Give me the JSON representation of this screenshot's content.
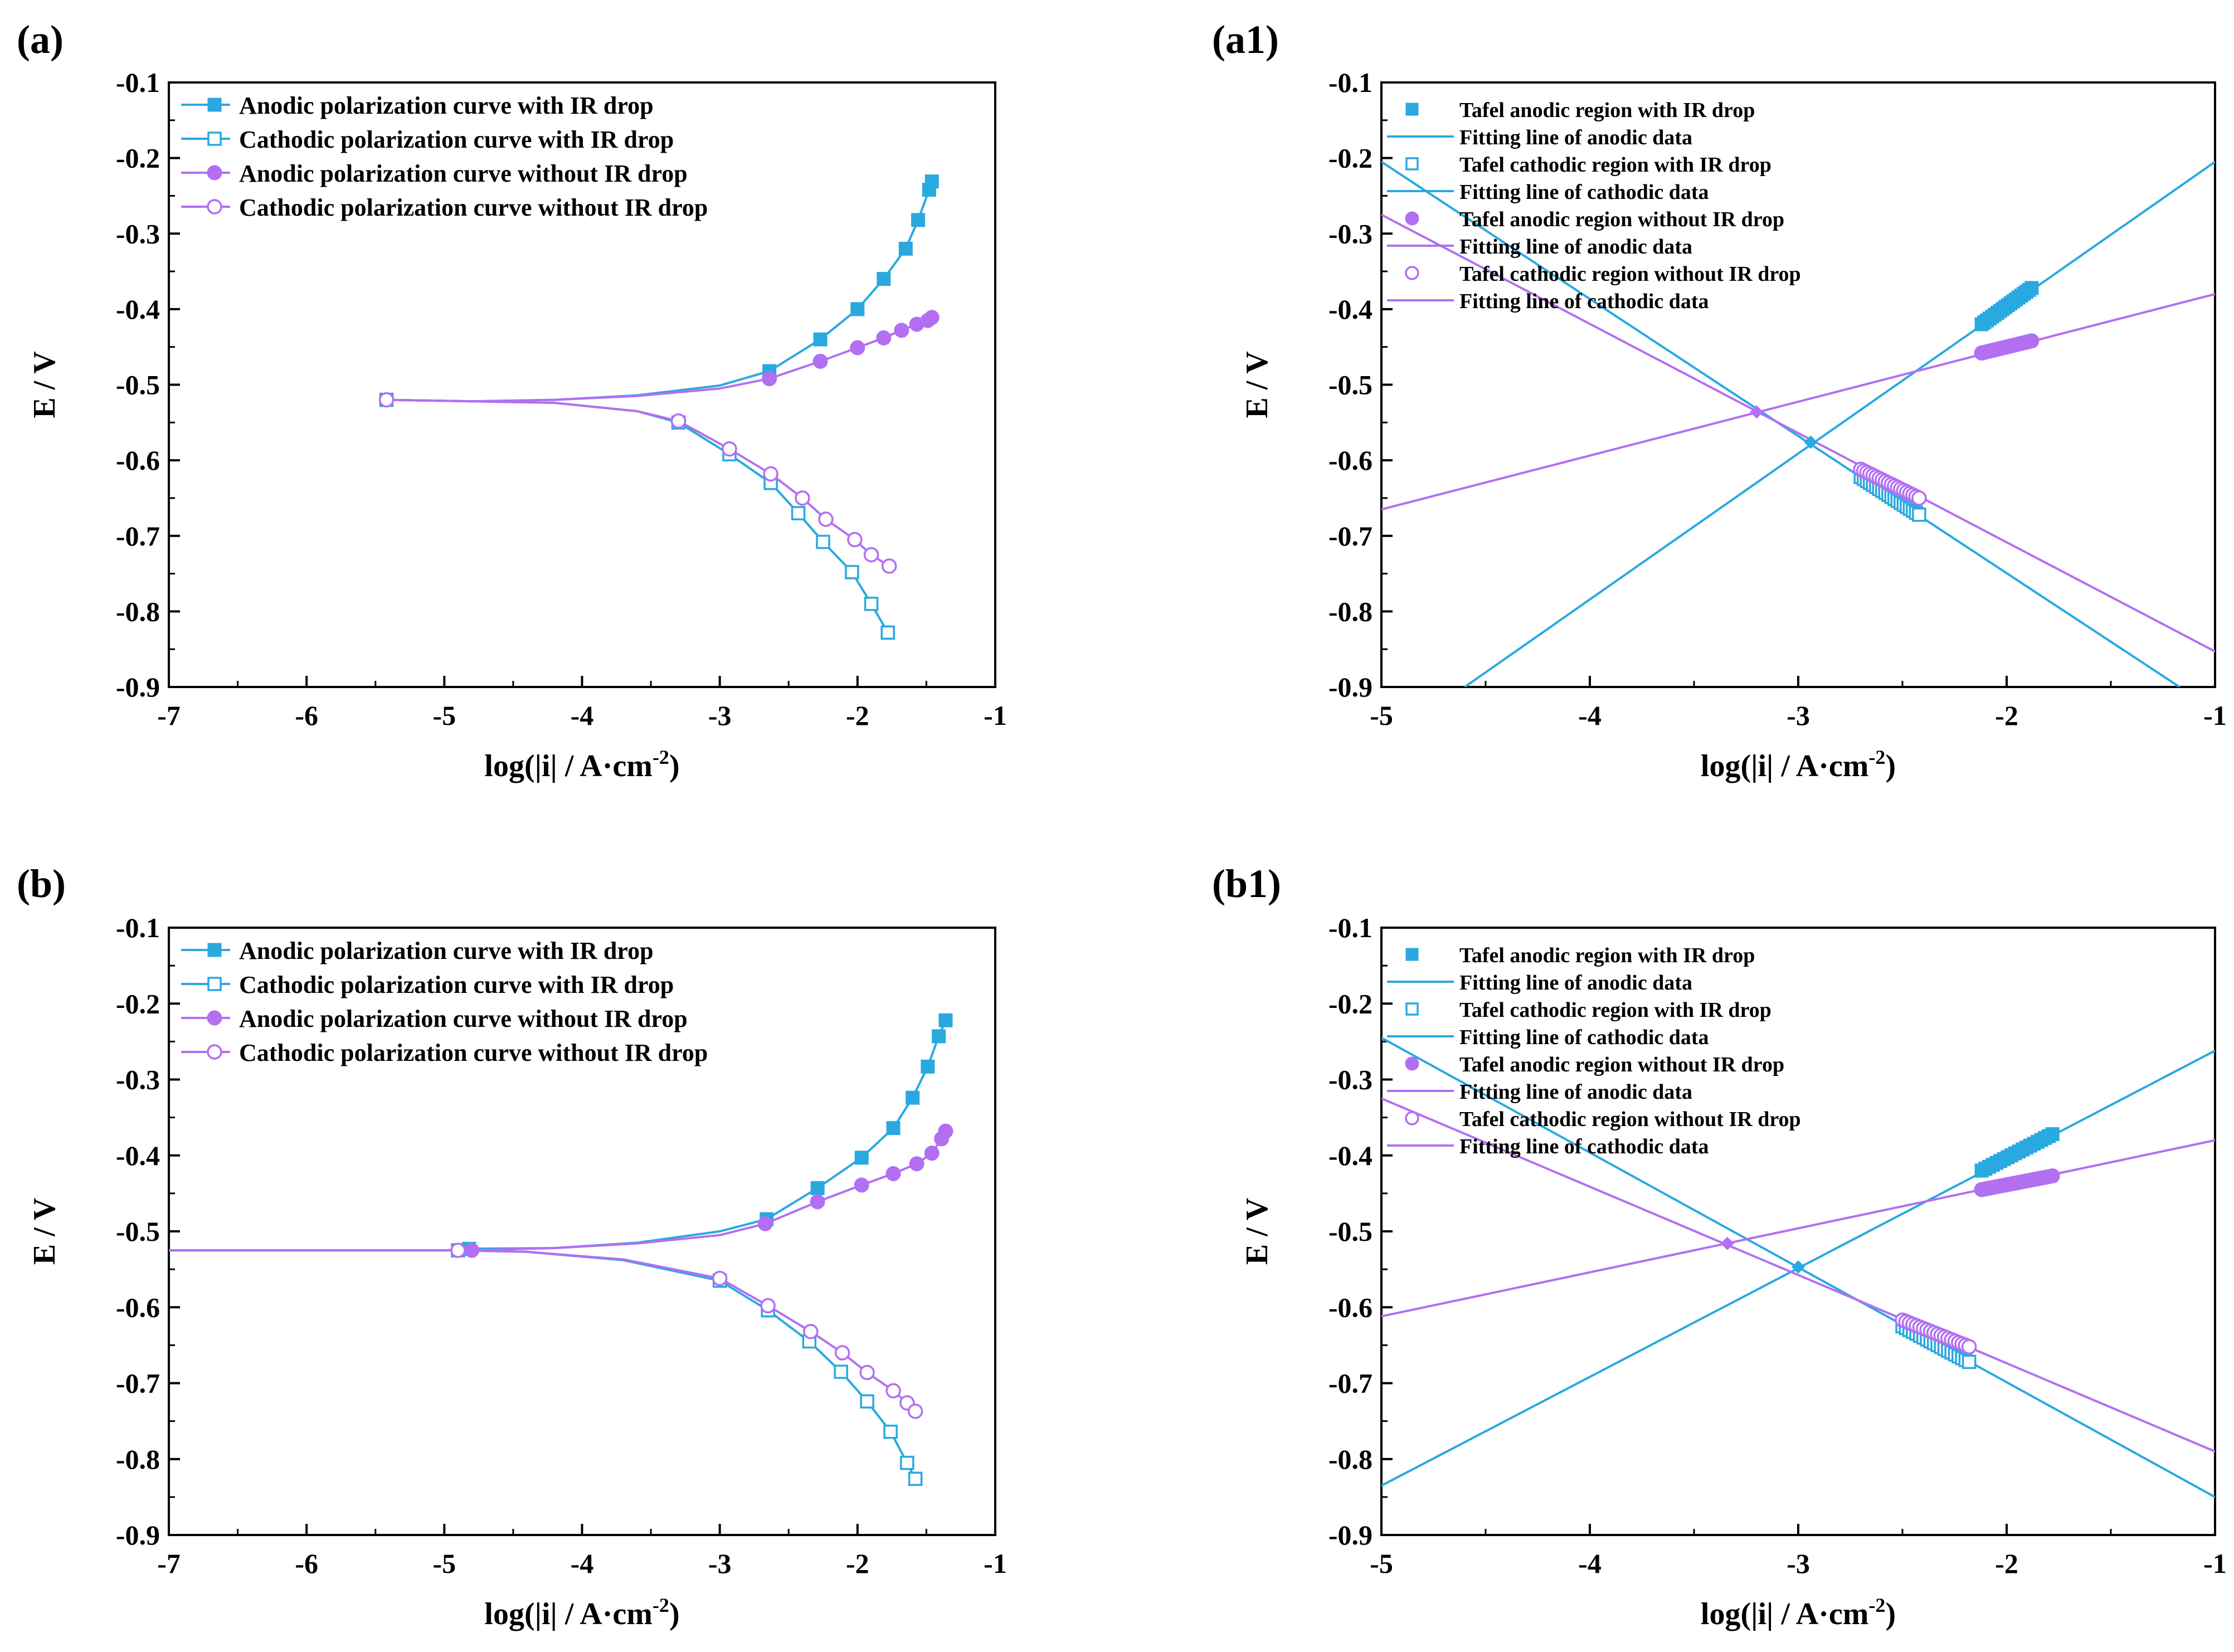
{
  "colors": {
    "blue": "#29a9e0",
    "purple": "#b36ff2",
    "axis": "#000000"
  },
  "panels": {
    "a": {
      "label": "(a)"
    },
    "a1": {
      "label": "(a1)"
    },
    "b": {
      "label": "(b)"
    },
    "b1": {
      "label": "(b1)"
    }
  },
  "chart_data": [
    {
      "id": "a",
      "type": "line",
      "xlabel_base": "log(|i| / A·cm",
      "xlabel_sup": "-2",
      "xlabel_close": ")",
      "ylabel": "E / V",
      "xlim": [
        -7,
        -1
      ],
      "ylim": [
        -0.9,
        -0.1
      ],
      "xticks": [
        -7,
        -6,
        -5,
        -4,
        -3,
        -2,
        -1
      ],
      "xticklabels": [
        "-7",
        "-6",
        "-5",
        "-4",
        "-3",
        "-2",
        "-1"
      ],
      "yticks": [
        -0.1,
        -0.2,
        -0.3,
        -0.4,
        -0.5,
        -0.6,
        -0.7,
        -0.8,
        -0.9
      ],
      "yticklabels": [
        "-0.1",
        "-0.2",
        "-0.3",
        "-0.4",
        "-0.5",
        "-0.6",
        "-0.7",
        "-0.8",
        "-0.9"
      ],
      "legend_position": "top-left",
      "series": [
        {
          "name": "Anodic polarization curve with IR drop",
          "color": "blue",
          "marker": "square-filled",
          "x": [
            -5.42,
            -4.8,
            -4.2,
            -3.6,
            -3.0,
            -2.64,
            -2.27,
            -2.0,
            -1.81,
            -1.65,
            -1.56,
            -1.48,
            -1.46
          ],
          "y": [
            -0.52,
            -0.522,
            -0.52,
            -0.514,
            -0.501,
            -0.482,
            -0.44,
            -0.4,
            -0.36,
            -0.32,
            -0.282,
            -0.242,
            -0.231
          ],
          "marker_x": [
            -2.64,
            -2.27,
            -2.0,
            -1.81,
            -1.65,
            -1.56,
            -1.48,
            -1.46
          ],
          "marker_y": [
            -0.482,
            -0.44,
            -0.4,
            -0.36,
            -0.32,
            -0.282,
            -0.242,
            -0.231
          ]
        },
        {
          "name": "Cathodic polarization curve with IR drop",
          "color": "blue",
          "marker": "square-open",
          "x": [
            -5.42,
            -4.8,
            -4.2,
            -3.6,
            -3.3,
            -2.93,
            -2.63,
            -2.43,
            -2.25,
            -2.04,
            -1.9,
            -1.78
          ],
          "y": [
            -0.52,
            -0.522,
            -0.524,
            -0.535,
            -0.55,
            -0.592,
            -0.63,
            -0.67,
            -0.708,
            -0.748,
            -0.79,
            -0.828
          ],
          "marker_x": [
            -5.42,
            -3.3,
            -2.93,
            -2.63,
            -2.43,
            -2.25,
            -2.04,
            -1.9,
            -1.78
          ],
          "marker_y": [
            -0.52,
            -0.55,
            -0.592,
            -0.63,
            -0.67,
            -0.708,
            -0.748,
            -0.79,
            -0.828
          ]
        },
        {
          "name": "Anodic polarization curve without IR drop",
          "color": "purple",
          "marker": "circle-filled",
          "x": [
            -5.42,
            -4.8,
            -4.2,
            -3.6,
            -3.0,
            -2.64,
            -2.27,
            -2.0,
            -1.81,
            -1.68,
            -1.57,
            -1.49,
            -1.46
          ],
          "y": [
            -0.52,
            -0.522,
            -0.52,
            -0.515,
            -0.505,
            -0.492,
            -0.469,
            -0.451,
            -0.438,
            -0.428,
            -0.42,
            -0.415,
            -0.411
          ],
          "marker_x": [
            -2.64,
            -2.27,
            -2.0,
            -1.81,
            -1.68,
            -1.57,
            -1.49,
            -1.46
          ],
          "marker_y": [
            -0.492,
            -0.469,
            -0.451,
            -0.438,
            -0.428,
            -0.42,
            -0.415,
            -0.411
          ]
        },
        {
          "name": "Cathodic polarization curve without IR drop",
          "color": "purple",
          "marker": "circle-open",
          "x": [
            -5.42,
            -4.8,
            -4.2,
            -3.6,
            -3.3,
            -2.93,
            -2.63,
            -2.4,
            -2.23,
            -2.02,
            -1.9,
            -1.77
          ],
          "y": [
            -0.52,
            -0.522,
            -0.524,
            -0.535,
            -0.548,
            -0.585,
            -0.618,
            -0.65,
            -0.678,
            -0.705,
            -0.725,
            -0.74
          ],
          "marker_x": [
            -5.42,
            -3.3,
            -2.93,
            -2.63,
            -2.4,
            -2.23,
            -2.02,
            -1.9,
            -1.77
          ],
          "marker_y": [
            -0.52,
            -0.548,
            -0.585,
            -0.618,
            -0.65,
            -0.678,
            -0.705,
            -0.725,
            -0.74
          ]
        }
      ]
    },
    {
      "id": "a1",
      "type": "line",
      "xlabel_base": "log(|i| / A·cm",
      "xlabel_sup": "-2",
      "xlabel_close": ")",
      "ylabel": "E / V",
      "xlim": [
        -5,
        -1
      ],
      "ylim": [
        -0.9,
        -0.1
      ],
      "xticks": [
        -5,
        -4,
        -3,
        -2,
        -1
      ],
      "xticklabels": [
        "-5",
        "-4",
        "-3",
        "-2",
        "-1"
      ],
      "yticks": [
        -0.1,
        -0.2,
        -0.3,
        -0.4,
        -0.5,
        -0.6,
        -0.7,
        -0.8,
        -0.9
      ],
      "yticklabels": [
        "-0.1",
        "-0.2",
        "-0.3",
        "-0.4",
        "-0.5",
        "-0.6",
        "-0.7",
        "-0.8",
        "-0.9"
      ],
      "legend_position": "top-left",
      "legend": [
        {
          "label": "Tafel anodic region with IR drop",
          "color": "blue",
          "kind": "square-filled"
        },
        {
          "label": "Fitting line of anodic data",
          "color": "blue",
          "kind": "line"
        },
        {
          "label": "Tafel cathodic region with IR drop",
          "color": "blue",
          "kind": "square-open"
        },
        {
          "label": "Fitting line of cathodic data",
          "color": "blue",
          "kind": "line"
        },
        {
          "label": "Tafel anodic region without IR drop",
          "color": "purple",
          "kind": "circle-filled"
        },
        {
          "label": "Fitting line of anodic data",
          "color": "purple",
          "kind": "line"
        },
        {
          "label": "Tafel cathodic region without IR drop",
          "color": "purple",
          "kind": "circle-open"
        },
        {
          "label": "Fitting line of cathodic data",
          "color": "purple",
          "kind": "line"
        }
      ],
      "fit_lines": [
        {
          "name": "Fitting line of anodic data (with IR drop)",
          "color": "blue",
          "x": [
            -4.6,
            -1.0
          ],
          "y": [
            -0.9,
            -0.205
          ]
        },
        {
          "name": "Fitting line of cathodic data (with IR drop)",
          "color": "blue",
          "x": [
            -5.0,
            -1.17
          ],
          "y": [
            -0.205,
            -0.9
          ]
        },
        {
          "name": "Fitting line of anodic data (without IR drop)",
          "color": "purple",
          "x": [
            -5.0,
            -1.0
          ],
          "y": [
            -0.665,
            -0.38
          ]
        },
        {
          "name": "Fitting line of cathodic data (without IR drop)",
          "color": "purple",
          "x": [
            -5.0,
            -1.0
          ],
          "y": [
            -0.275,
            -0.853
          ]
        }
      ],
      "tafel_regions": [
        {
          "name": "Tafel anodic region with IR drop",
          "color": "blue",
          "marker": "square-filled",
          "x": [
            -2.12,
            -1.88
          ],
          "y": [
            -0.42,
            -0.372
          ],
          "n": 20
        },
        {
          "name": "Tafel cathodic region with IR drop",
          "color": "blue",
          "marker": "square-open",
          "x": [
            -2.7,
            -2.42
          ],
          "y": [
            -0.622,
            -0.672
          ],
          "n": 20
        },
        {
          "name": "Tafel anodic region without IR drop",
          "color": "purple",
          "marker": "circle-filled",
          "x": [
            -2.12,
            -1.88
          ],
          "y": [
            -0.458,
            -0.442
          ],
          "n": 20
        },
        {
          "name": "Tafel cathodic region without IR drop",
          "color": "purple",
          "marker": "circle-open",
          "x": [
            -2.7,
            -2.42
          ],
          "y": [
            -0.612,
            -0.65
          ],
          "n": 20
        }
      ],
      "intersections": [
        {
          "color": "blue",
          "x": -2.94,
          "y": -0.576
        },
        {
          "color": "purple",
          "x": -3.2,
          "y": -0.536
        }
      ]
    },
    {
      "id": "b",
      "type": "line",
      "xlabel_base": "log(|i| / A·cm",
      "xlabel_sup": "-2",
      "xlabel_close": ")",
      "ylabel": "E / V",
      "xlim": [
        -7,
        -1
      ],
      "ylim": [
        -0.9,
        -0.1
      ],
      "xticks": [
        -7,
        -6,
        -5,
        -4,
        -3,
        -2,
        -1
      ],
      "xticklabels": [
        "-7",
        "-6",
        "-5",
        "-4",
        "-3",
        "-2",
        "-1"
      ],
      "yticks": [
        -0.1,
        -0.2,
        -0.3,
        -0.4,
        -0.5,
        -0.6,
        -0.7,
        -0.8,
        -0.9
      ],
      "yticklabels": [
        "-0.1",
        "-0.2",
        "-0.3",
        "-0.4",
        "-0.5",
        "-0.6",
        "-0.7",
        "-0.8",
        "-0.9"
      ],
      "legend_position": "top-left",
      "series": [
        {
          "name": "Anodic polarization curve with IR drop",
          "color": "blue",
          "marker": "square-filled",
          "x": [
            -7.0,
            -6.0,
            -5.0,
            -4.82,
            -4.2,
            -3.6,
            -3.0,
            -2.66,
            -2.29,
            -1.97,
            -1.74,
            -1.6,
            -1.49,
            -1.41,
            -1.36
          ],
          "y": [
            -0.525,
            -0.525,
            -0.525,
            -0.523,
            -0.522,
            -0.515,
            -0.5,
            -0.484,
            -0.443,
            -0.403,
            -0.364,
            -0.324,
            -0.283,
            -0.243,
            -0.222
          ],
          "marker_x": [
            -4.82,
            -2.66,
            -2.29,
            -1.97,
            -1.74,
            -1.6,
            -1.49,
            -1.41,
            -1.36
          ],
          "marker_y": [
            -0.523,
            -0.484,
            -0.443,
            -0.403,
            -0.364,
            -0.324,
            -0.283,
            -0.243,
            -0.222
          ]
        },
        {
          "name": "Cathodic polarization curve with IR drop",
          "color": "blue",
          "marker": "square-open",
          "x": [
            -7.0,
            -6.0,
            -4.9,
            -4.4,
            -3.7,
            -3.0,
            -2.65,
            -2.35,
            -2.12,
            -1.93,
            -1.76,
            -1.64,
            -1.58
          ],
          "y": [
            -0.525,
            -0.525,
            -0.525,
            -0.527,
            -0.538,
            -0.565,
            -0.604,
            -0.645,
            -0.685,
            -0.724,
            -0.764,
            -0.805,
            -0.826
          ],
          "marker_x": [
            -4.9,
            -3.0,
            -2.65,
            -2.35,
            -2.12,
            -1.93,
            -1.76,
            -1.64,
            -1.58
          ],
          "marker_y": [
            -0.525,
            -0.565,
            -0.604,
            -0.645,
            -0.685,
            -0.724,
            -0.764,
            -0.805,
            -0.826
          ]
        },
        {
          "name": "Anodic polarization curve without IR drop",
          "color": "purple",
          "marker": "circle-filled",
          "x": [
            -7.0,
            -6.0,
            -5.0,
            -4.8,
            -4.2,
            -3.6,
            -3.0,
            -2.67,
            -2.29,
            -1.97,
            -1.74,
            -1.57,
            -1.46,
            -1.39,
            -1.36
          ],
          "y": [
            -0.525,
            -0.525,
            -0.525,
            -0.525,
            -0.522,
            -0.516,
            -0.505,
            -0.49,
            -0.461,
            -0.439,
            -0.424,
            -0.411,
            -0.397,
            -0.378,
            -0.368
          ],
          "marker_x": [
            -4.8,
            -2.67,
            -2.29,
            -1.97,
            -1.74,
            -1.57,
            -1.46,
            -1.39,
            -1.36
          ],
          "marker_y": [
            -0.525,
            -0.49,
            -0.461,
            -0.439,
            -0.424,
            -0.411,
            -0.397,
            -0.378,
            -0.368
          ]
        },
        {
          "name": "Cathodic polarization curve without IR drop",
          "color": "purple",
          "marker": "circle-open",
          "x": [
            -7.0,
            -6.0,
            -4.9,
            -4.4,
            -3.7,
            -3.0,
            -2.65,
            -2.34,
            -2.11,
            -1.93,
            -1.74,
            -1.64,
            -1.58
          ],
          "y": [
            -0.525,
            -0.525,
            -0.525,
            -0.527,
            -0.537,
            -0.562,
            -0.598,
            -0.632,
            -0.66,
            -0.686,
            -0.71,
            -0.726,
            -0.737
          ],
          "marker_x": [
            -4.9,
            -3.0,
            -2.65,
            -2.34,
            -2.11,
            -1.93,
            -1.74,
            -1.64,
            -1.58
          ],
          "marker_y": [
            -0.525,
            -0.562,
            -0.598,
            -0.632,
            -0.66,
            -0.686,
            -0.71,
            -0.726,
            -0.737
          ]
        }
      ]
    },
    {
      "id": "b1",
      "type": "line",
      "xlabel_base": "log(|i| / A·cm",
      "xlabel_sup": "-2",
      "xlabel_close": ")",
      "ylabel": "E / V",
      "xlim": [
        -5,
        -1
      ],
      "ylim": [
        -0.9,
        -0.1
      ],
      "xticks": [
        -5,
        -4,
        -3,
        -2,
        -1
      ],
      "xticklabels": [
        "-5",
        "-4",
        "-3",
        "-2",
        "-1"
      ],
      "yticks": [
        -0.1,
        -0.2,
        -0.3,
        -0.4,
        -0.5,
        -0.6,
        -0.7,
        -0.8,
        -0.9
      ],
      "yticklabels": [
        "-0.1",
        "-0.2",
        "-0.3",
        "-0.4",
        "-0.5",
        "-0.6",
        "-0.7",
        "-0.8",
        "-0.9"
      ],
      "legend_position": "top-left",
      "legend": [
        {
          "label": "Tafel anodic region with IR drop",
          "color": "blue",
          "kind": "square-filled"
        },
        {
          "label": "Fitting line of anodic data",
          "color": "blue",
          "kind": "line"
        },
        {
          "label": "Tafel cathodic region with IR drop",
          "color": "blue",
          "kind": "square-open"
        },
        {
          "label": "Fitting line of cathodic data",
          "color": "blue",
          "kind": "line"
        },
        {
          "label": "Tafel anodic region without IR drop",
          "color": "purple",
          "kind": "circle-filled"
        },
        {
          "label": "Fitting line of anodic data",
          "color": "purple",
          "kind": "line"
        },
        {
          "label": "Tafel cathodic region without IR drop",
          "color": "purple",
          "kind": "circle-open"
        },
        {
          "label": "Fitting line of cathodic data",
          "color": "purple",
          "kind": "line"
        }
      ],
      "fit_lines": [
        {
          "name": "Fitting line of anodic data (with IR drop)",
          "color": "blue",
          "x": [
            -5.0,
            -1.0
          ],
          "y": [
            -0.835,
            -0.262
          ]
        },
        {
          "name": "Fitting line of cathodic data (with IR drop)",
          "color": "blue",
          "x": [
            -5.0,
            -1.0
          ],
          "y": [
            -0.245,
            -0.85
          ]
        },
        {
          "name": "Fitting line of anodic data (without IR drop)",
          "color": "purple",
          "x": [
            -5.0,
            -1.0
          ],
          "y": [
            -0.612,
            -0.38
          ]
        },
        {
          "name": "Fitting line of cathodic data (without IR drop)",
          "color": "purple",
          "x": [
            -5.0,
            -1.0
          ],
          "y": [
            -0.325,
            -0.79
          ]
        }
      ],
      "tafel_regions": [
        {
          "name": "Tafel anodic region with IR drop",
          "color": "blue",
          "marker": "square-filled",
          "x": [
            -2.12,
            -1.78
          ],
          "y": [
            -0.42,
            -0.372
          ],
          "n": 20
        },
        {
          "name": "Tafel cathodic region with IR drop",
          "color": "blue",
          "marker": "square-open",
          "x": [
            -2.5,
            -2.18
          ],
          "y": [
            -0.625,
            -0.672
          ],
          "n": 20
        },
        {
          "name": "Tafel anodic region without IR drop",
          "color": "purple",
          "marker": "circle-filled",
          "x": [
            -2.12,
            -1.78
          ],
          "y": [
            -0.445,
            -0.427
          ],
          "n": 20
        },
        {
          "name": "Tafel cathodic region without IR drop",
          "color": "purple",
          "marker": "circle-open",
          "x": [
            -2.5,
            -2.18
          ],
          "y": [
            -0.617,
            -0.652
          ],
          "n": 20
        }
      ],
      "intersections": [
        {
          "color": "blue",
          "x": -3.0,
          "y": -0.547
        },
        {
          "color": "purple",
          "x": -3.34,
          "y": -0.516
        }
      ]
    }
  ]
}
